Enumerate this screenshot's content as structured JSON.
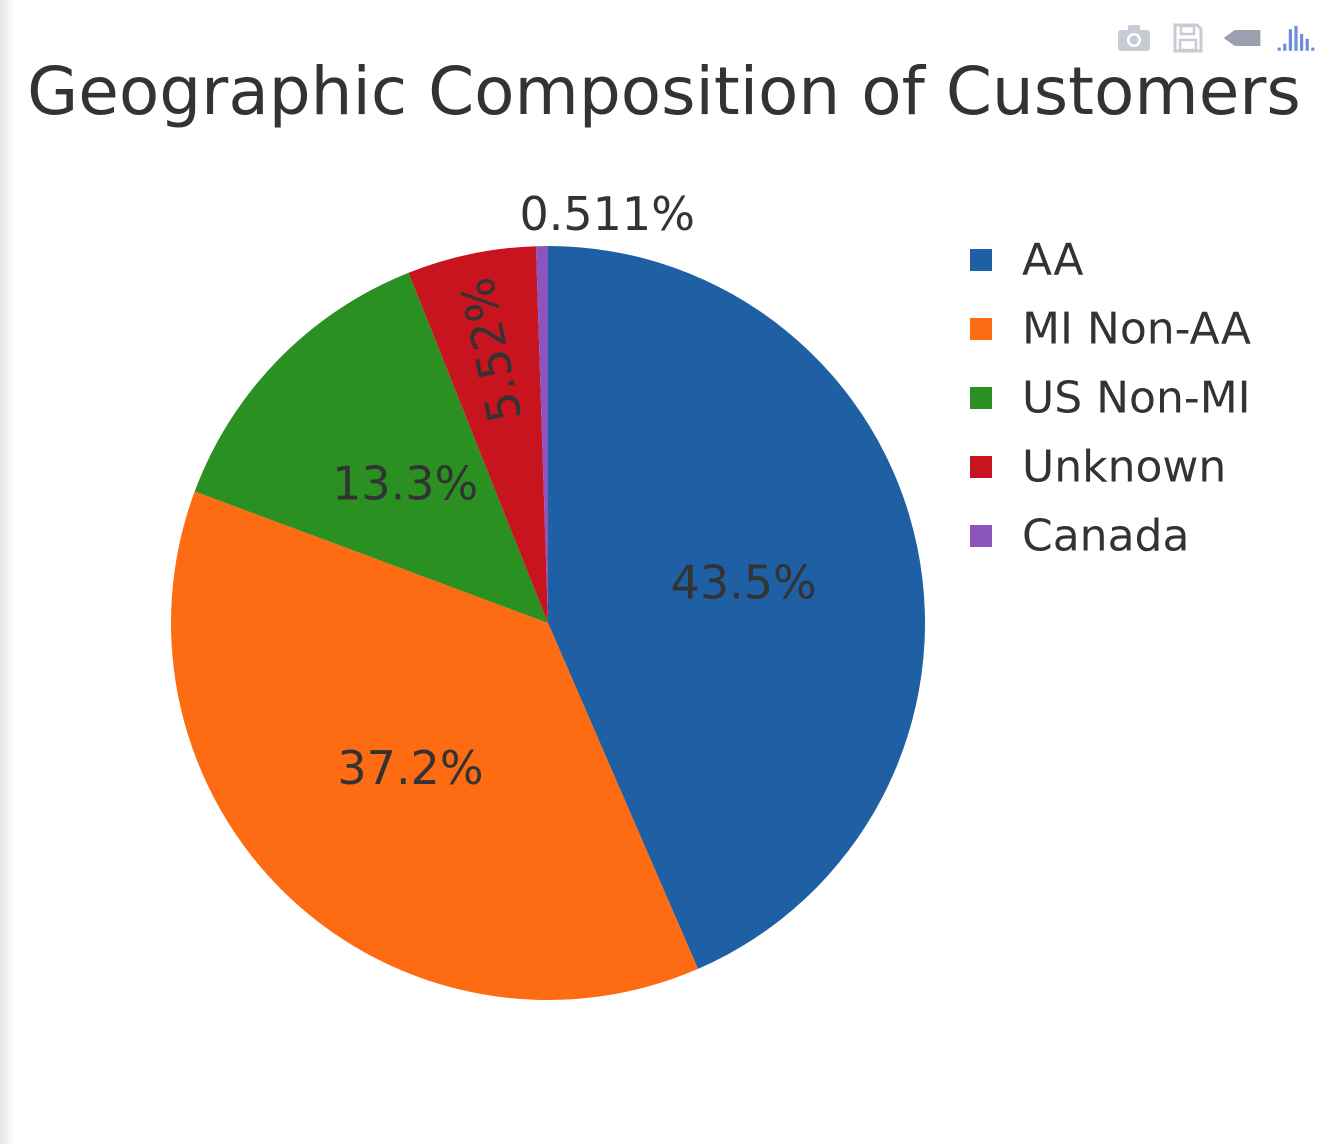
{
  "modebar": {
    "icons": [
      "camera-icon",
      "save-icon",
      "compare-data-icon",
      "plotly-logo-icon"
    ]
  },
  "chart_data": {
    "type": "pie",
    "title": "Geographic Composition of Customers",
    "labels": [
      "AA",
      "MI Non-AA",
      "US Non-MI",
      "Unknown",
      "Canada"
    ],
    "values": [
      43.5,
      37.2,
      13.3,
      5.52,
      0.511
    ],
    "text_labels": [
      "43.5%",
      "37.2%",
      "13.3%",
      "5.52%",
      "0.511%"
    ],
    "colors": [
      "#1f5fa3",
      "#fd6b12",
      "#2a9021",
      "#c8141f",
      "#8c55bd"
    ],
    "legend": {
      "position": "right",
      "entries": [
        "AA",
        "MI Non-AA",
        "US Non-MI",
        "Unknown",
        "Canada"
      ]
    },
    "sort_order": "descending",
    "direction": "clockwise",
    "start_angle_deg": 0
  }
}
